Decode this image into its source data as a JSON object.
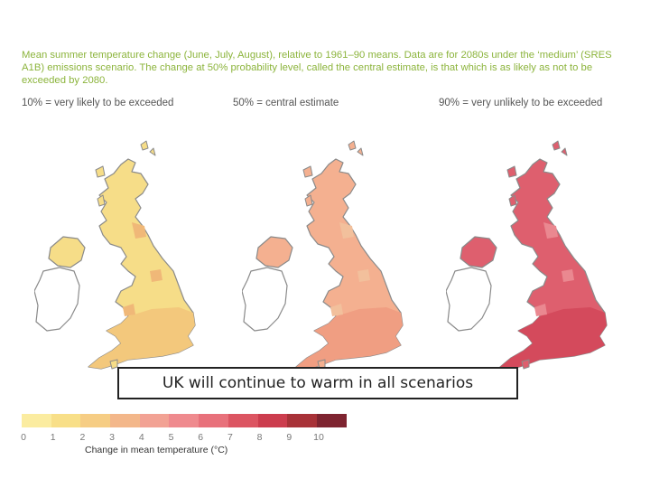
{
  "description": "Mean summer temperature change (June, July, August), relative to 1961–90 means. Data are for 2080s under the ‘medium’ (SRES A1B) emissions scenario. The change at 50% probability level, called the central estimate, is that which is as likely as not to be exceeded by 2080.",
  "panels": [
    {
      "label": "10% = very likely to be exceeded",
      "base_color": "#f6dd88",
      "south_color": "#f3c87c",
      "detail_color": "#f0b878"
    },
    {
      "label": "50% = central estimate",
      "base_color": "#f4b090",
      "south_color": "#f09e82",
      "detail_color": "#f2c09c"
    },
    {
      "label": "90% = very unlikely to be exceeded",
      "base_color": "#de5f6e",
      "south_color": "#d44a5c",
      "detail_color": "#ea8890"
    }
  ],
  "banner": "UK will continue to warm in all scenarios",
  "scale": {
    "title": "Change in mean temperature (°C)",
    "ticks": [
      "0",
      "1",
      "2",
      "3",
      "4",
      "5",
      "6",
      "7",
      "8",
      "9",
      "10"
    ],
    "colors": [
      "#fbeca0",
      "#f8df88",
      "#f6cd84",
      "#f3b78a",
      "#f2a294",
      "#ef8a8e",
      "#e8717b",
      "#dc5562",
      "#cc3d4e",
      "#a83238",
      "#7e2430"
    ]
  }
}
